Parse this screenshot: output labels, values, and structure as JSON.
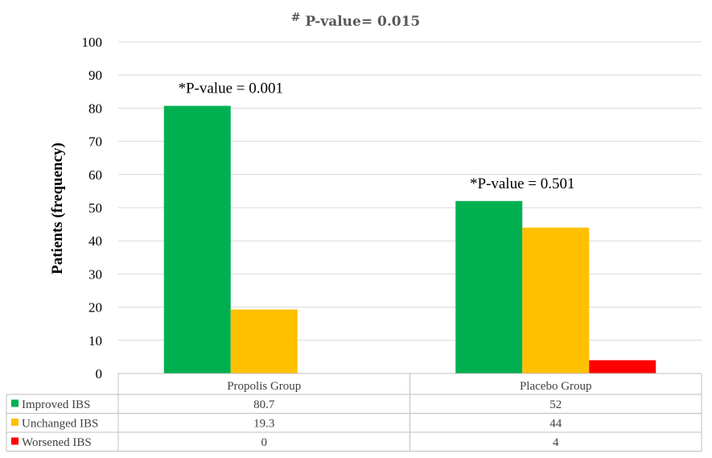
{
  "chart_data": {
    "type": "bar",
    "title_mark": "#",
    "title": "P-value= 0.015",
    "ylabel": "Patients (frequency)",
    "xlabel": "",
    "ylim": [
      0,
      100
    ],
    "yticks": [
      0,
      10,
      20,
      30,
      40,
      50,
      60,
      70,
      80,
      90,
      100
    ],
    "categories": [
      "Propolis Group",
      "Placebo Group"
    ],
    "series": [
      {
        "name": "Improved IBS",
        "color": "#00b050",
        "values": [
          80.7,
          52
        ]
      },
      {
        "name": "Unchanged IBS",
        "color": "#ffc000",
        "values": [
          19.3,
          44
        ]
      },
      {
        "name": "Worsened IBS",
        "color": "#ff0000",
        "values": [
          0,
          4
        ]
      }
    ],
    "data_table": {
      "rows": [
        {
          "label": "Improved IBS",
          "values": [
            "80.7",
            "52"
          ]
        },
        {
          "label": "Unchanged IBS",
          "values": [
            "19.3",
            "44"
          ]
        },
        {
          "label": "Worsened IBS",
          "values": [
            "0",
            "4"
          ]
        }
      ]
    },
    "annotations": [
      {
        "category": "Propolis Group",
        "text": "*P-value = 0.001"
      },
      {
        "category": "Placebo Group",
        "text": "*P-value = 0.501"
      }
    ],
    "grid": true,
    "legend": "data-table"
  }
}
